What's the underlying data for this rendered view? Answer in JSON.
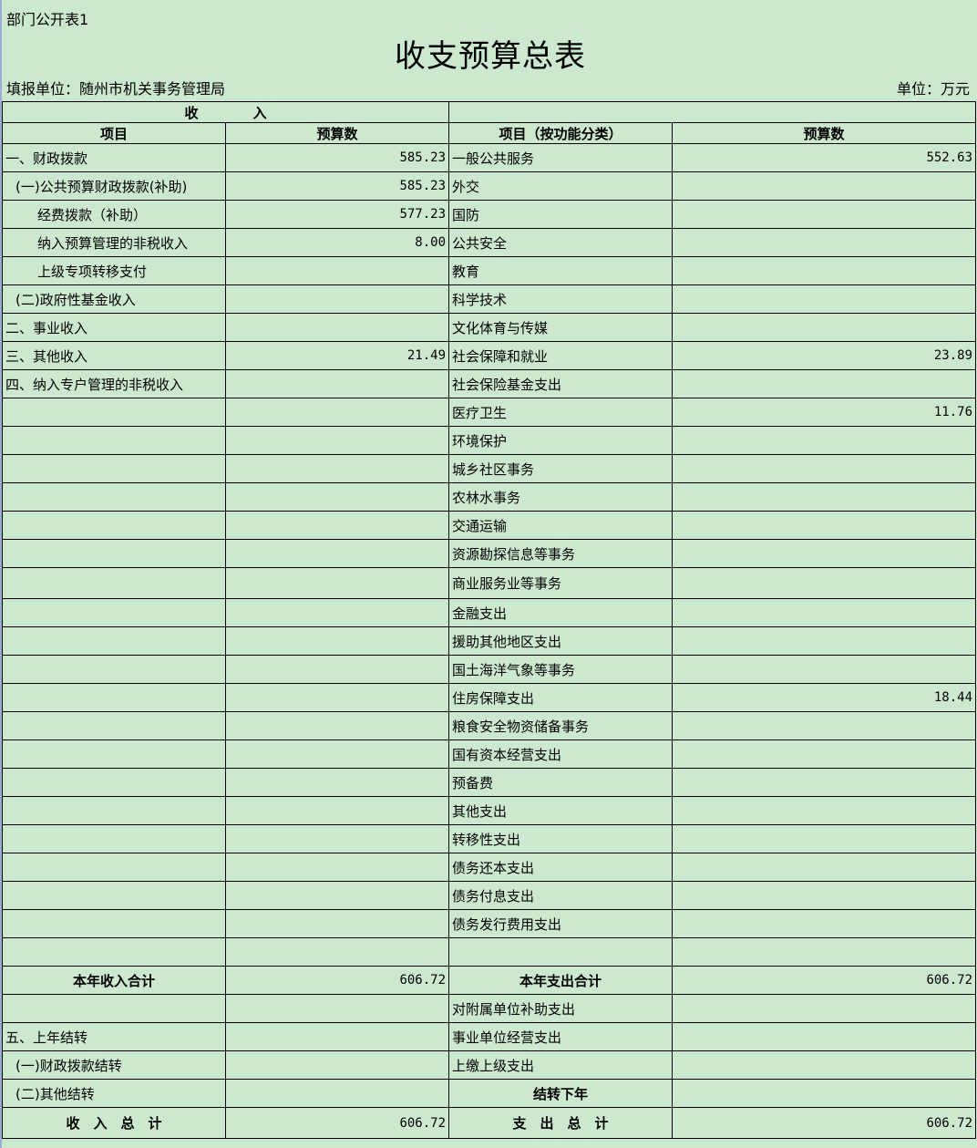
{
  "caption": "部门公开表1",
  "title": "收支预算总表",
  "unit_left": "填报单位：随州市机关事务管理局",
  "unit_right": "单位：万元",
  "header": {
    "income": "收　　　　入",
    "expense": "",
    "col1": "项目",
    "col2": "预算数",
    "col3": "项目（按功能分类）",
    "col4": "预算数"
  },
  "rows": [
    {
      "l": "一、财政拨款",
      "lv": "585.23",
      "r": "一般公共服务",
      "rv": "552.63"
    },
    {
      "l": "(一)公共预算财政拨款(补助)",
      "lv": "585.23",
      "r": "外交",
      "rv": "",
      "li": 1
    },
    {
      "l": "经费拨款（补助）",
      "lv": "577.23",
      "r": "国防",
      "rv": "",
      "li": 2
    },
    {
      "l": "纳入预算管理的非税收入",
      "lv": "8.00",
      "r": "公共安全",
      "rv": "",
      "li": 2
    },
    {
      "l": "上级专项转移支付",
      "lv": "",
      "r": "教育",
      "rv": "",
      "li": 2
    },
    {
      "l": "(二)政府性基金收入",
      "lv": "",
      "r": "科学技术",
      "rv": "",
      "li": 1
    },
    {
      "l": "二、事业收入",
      "lv": "",
      "r": "文化体育与传媒",
      "rv": ""
    },
    {
      "l": "三、其他收入",
      "lv": "21.49",
      "r": "社会保障和就业",
      "rv": "23.89"
    },
    {
      "l": "四、纳入专户管理的非税收入",
      "lv": "",
      "r": "社会保险基金支出",
      "rv": ""
    },
    {
      "l": "",
      "lv": "",
      "r": "医疗卫生",
      "rv": "11.76"
    },
    {
      "l": "",
      "lv": "",
      "r": "环境保护",
      "rv": ""
    },
    {
      "l": "",
      "lv": "",
      "r": "城乡社区事务",
      "rv": ""
    },
    {
      "l": "",
      "lv": "",
      "r": "农林水事务",
      "rv": ""
    },
    {
      "l": "",
      "lv": "",
      "r": "交通运输",
      "rv": ""
    },
    {
      "l": "",
      "lv": "",
      "r": "资源勘探信息等事务",
      "rv": ""
    },
    {
      "l": "",
      "lv": "",
      "r": "商业服务业等事务",
      "rv": "",
      "tall": 1
    },
    {
      "l": "",
      "lv": "",
      "r": "金融支出",
      "rv": ""
    },
    {
      "l": "",
      "lv": "",
      "r": "援助其他地区支出",
      "rv": ""
    },
    {
      "l": "",
      "lv": "",
      "r": "国土海洋气象等事务",
      "rv": ""
    },
    {
      "l": "",
      "lv": "",
      "r": "住房保障支出",
      "rv": "18.44"
    },
    {
      "l": "",
      "lv": "",
      "r": "粮食安全物资储备事务",
      "rv": ""
    },
    {
      "l": "",
      "lv": "",
      "r": "国有资本经营支出",
      "rv": ""
    },
    {
      "l": "",
      "lv": "",
      "r": "预备费",
      "rv": ""
    },
    {
      "l": "",
      "lv": "",
      "r": "其他支出",
      "rv": ""
    },
    {
      "l": "",
      "lv": "",
      "r": "转移性支出",
      "rv": ""
    },
    {
      "l": "",
      "lv": "",
      "r": "债务还本支出",
      "rv": ""
    },
    {
      "l": "",
      "lv": "",
      "r": "债务付息支出",
      "rv": ""
    },
    {
      "l": "",
      "lv": "",
      "r": "债务发行费用支出",
      "rv": ""
    },
    {
      "l": "",
      "lv": "",
      "r": "",
      "rv": ""
    },
    {
      "l": "本年收入合计",
      "lv": "606.72",
      "r": "本年支出合计",
      "rv": "606.72",
      "lc": 1,
      "rc": 1
    },
    {
      "l": "",
      "lv": "",
      "r": "对附属单位补助支出",
      "rv": ""
    },
    {
      "l": "五、上年结转",
      "lv": "",
      "r": "事业单位经营支出",
      "rv": ""
    },
    {
      "l": "(一)财政拨款结转",
      "lv": "",
      "r": "上缴上级支出",
      "rv": "",
      "li": 1
    },
    {
      "l": "(二)其他结转",
      "lv": "",
      "r": "结转下年",
      "rv": "",
      "li": 1,
      "rc": 1
    },
    {
      "l": "收　入　总　计",
      "lv": "606.72",
      "r": "支　出　总　计",
      "rv": "606.72",
      "lc": 1,
      "rc": 1,
      "tall": 1
    }
  ]
}
